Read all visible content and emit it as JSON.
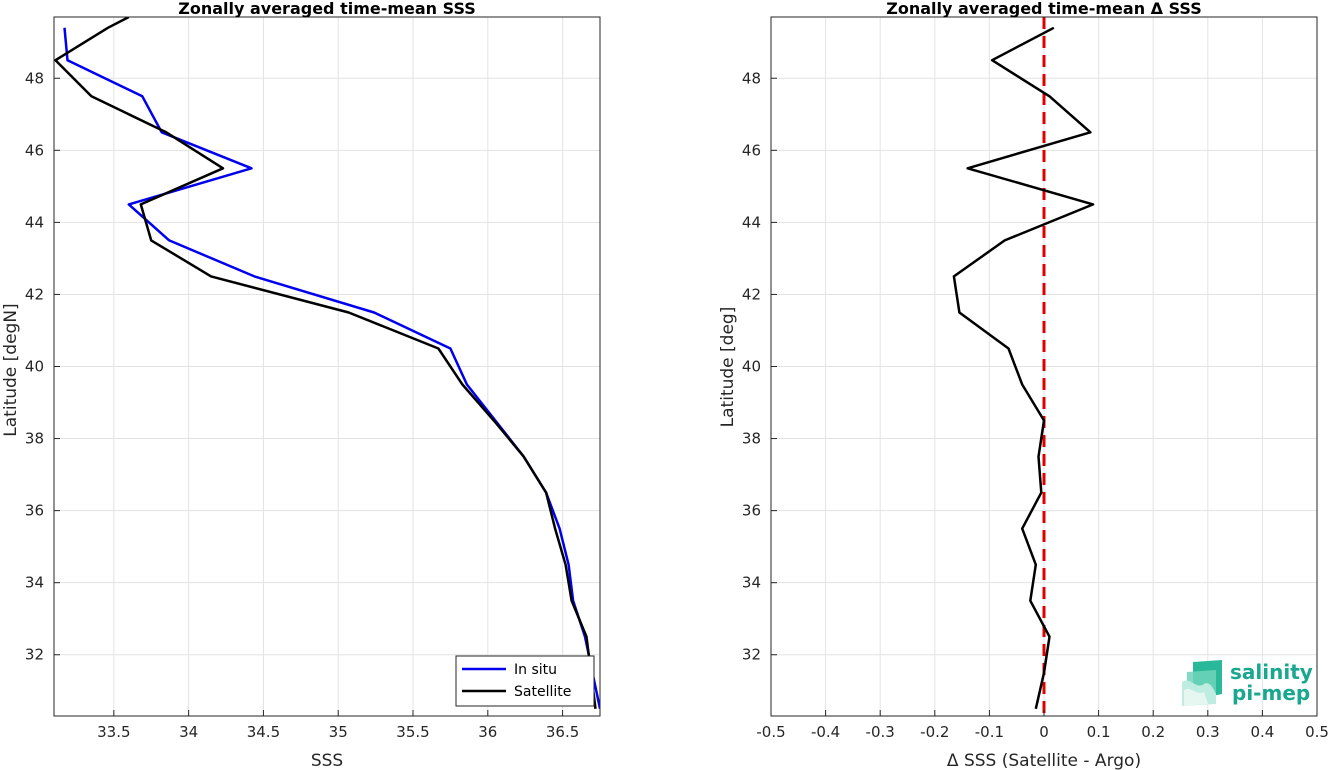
{
  "chart_data": [
    {
      "type": "line",
      "title": "Zonally averaged time-mean SSS",
      "xlabel": "SSS",
      "ylabel": "Latitude [degN]",
      "xlim": [
        33.1,
        36.75
      ],
      "ylim": [
        30.3,
        49.7
      ],
      "xticks": [
        "33.5",
        "34",
        "34.5",
        "35",
        "35.5",
        "36",
        "36.5"
      ],
      "xtick_values": [
        33.5,
        34,
        34.5,
        35,
        35.5,
        36,
        36.5
      ],
      "yticks": [
        "32",
        "34",
        "36",
        "38",
        "40",
        "42",
        "44",
        "46",
        "48"
      ],
      "ytick_values": [
        32,
        34,
        36,
        38,
        40,
        42,
        44,
        46,
        48
      ],
      "grid": true,
      "legend_position": "bottom-right",
      "series": [
        {
          "name": "In situ",
          "color": "#0000ee",
          "y": [
            30.5,
            31.5,
            32.5,
            33.5,
            34.5,
            35.5,
            36.5,
            37.5,
            38.5,
            39.5,
            40.5,
            41.5,
            42.5,
            43.5,
            44.5,
            45.5,
            46.5,
            47.5,
            48.5,
            49.4
          ],
          "x": [
            36.75,
            36.7,
            36.65,
            36.57,
            36.54,
            36.48,
            36.39,
            36.24,
            36.05,
            35.86,
            35.75,
            35.24,
            34.44,
            33.87,
            33.6,
            34.42,
            33.82,
            33.69,
            33.19,
            33.17
          ]
        },
        {
          "name": "Satellite",
          "color": "#000000",
          "y": [
            30.5,
            31.5,
            32.5,
            33.5,
            34.5,
            35.5,
            36.5,
            37.5,
            38.5,
            39.5,
            40.5,
            41.5,
            42.5,
            43.5,
            44.5,
            45.5,
            46.5,
            47.5,
            48.5,
            49.4,
            49.7
          ],
          "x": [
            36.72,
            36.69,
            36.66,
            36.56,
            36.52,
            36.45,
            36.39,
            36.24,
            36.04,
            35.83,
            35.67,
            35.07,
            34.15,
            33.75,
            33.68,
            34.23,
            33.85,
            33.35,
            33.11,
            33.46,
            33.6
          ]
        }
      ]
    },
    {
      "type": "line",
      "title": "Zonally averaged time-mean Δ SSS",
      "xlabel": "Δ SSS (Satellite - Argo)",
      "ylabel": "Latitude [deg]",
      "xlim": [
        -0.5,
        0.5
      ],
      "ylim": [
        30.3,
        49.7
      ],
      "xticks": [
        "-0.5",
        "-0.4",
        "-0.3",
        "-0.2",
        "-0.1",
        "0",
        "0.1",
        "0.2",
        "0.3",
        "0.4",
        "0.5"
      ],
      "xtick_values": [
        -0.5,
        -0.4,
        -0.3,
        -0.2,
        -0.1,
        0,
        0.1,
        0.2,
        0.3,
        0.4,
        0.5
      ],
      "yticks": [
        "32",
        "34",
        "36",
        "38",
        "40",
        "42",
        "44",
        "46",
        "48"
      ],
      "ytick_values": [
        32,
        34,
        36,
        38,
        40,
        42,
        44,
        46,
        48
      ],
      "grid": true,
      "reference_line": {
        "x": 0,
        "color": "#dd0000",
        "style": "dashed"
      },
      "series": [
        {
          "color": "#000000",
          "y": [
            30.5,
            31.5,
            32.5,
            33.5,
            34.5,
            35.5,
            36.5,
            37.5,
            38.5,
            39.5,
            40.5,
            41.5,
            42.5,
            43.5,
            44.5,
            45.5,
            46.5,
            47.5,
            48.5,
            49.4
          ],
          "x": [
            -0.015,
            0.0,
            0.01,
            -0.025,
            -0.015,
            -0.04,
            -0.005,
            -0.01,
            0.0,
            -0.04,
            -0.065,
            -0.155,
            -0.165,
            -0.072,
            0.09,
            -0.14,
            0.085,
            0.01,
            -0.095,
            0.018
          ]
        }
      ]
    }
  ],
  "logo": {
    "line1": "salinity",
    "line2": "pi-mep",
    "color": "#1aa78f"
  }
}
